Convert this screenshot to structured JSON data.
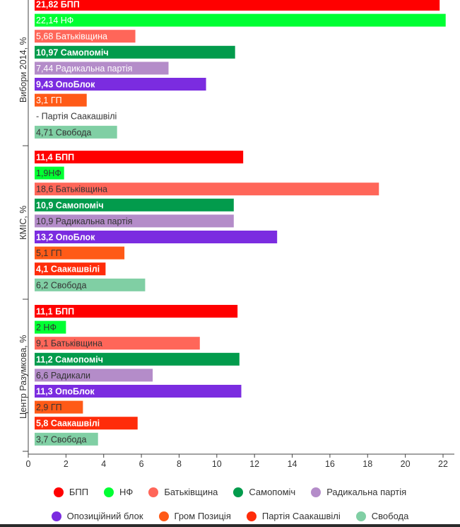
{
  "chart_data": {
    "type": "bar",
    "orientation": "horizontal",
    "x_ticks": [
      "0",
      "2",
      "4",
      "6",
      "8",
      "10",
      "12",
      "14",
      "16",
      "18",
      "20",
      "22"
    ],
    "xlim": [
      0,
      22.6
    ],
    "colors": {
      "bpp": "#ff0000",
      "nf": "#00ff33",
      "batk": "#ff6659",
      "samo": "#029b4c",
      "rad": "#b48cc9",
      "opo": "#7b2ce0",
      "grom": "#ff5a17",
      "saak": "#ff2c0a",
      "svob": "#80cfa4"
    },
    "groups": [
      {
        "label": "Вибори 2014, %",
        "bars": [
          {
            "key": "bpp",
            "value": 21.82,
            "label": "21,82 БПП",
            "bold": true,
            "text_color": "#ffffff"
          },
          {
            "key": "nf",
            "value": 22.14,
            "label": "22,14 НФ",
            "bold": false,
            "text_color": "#ffffff"
          },
          {
            "key": "batk",
            "value": 5.68,
            "label": "5,68 Батьківщина",
            "bold": false,
            "text_color": "#ffffff"
          },
          {
            "key": "samo",
            "value": 10.97,
            "label": "10,97 Самопоміч",
            "bold": true,
            "text_color": "#ffffff"
          },
          {
            "key": "rad",
            "value": 7.44,
            "label": "7,44 Радикальна партія",
            "bold": false,
            "text_color": "#ffffff"
          },
          {
            "key": "opo",
            "value": 9.43,
            "label": "9,43 ОпоБлок",
            "bold": true,
            "text_color": "#ffffff"
          },
          {
            "key": "grom",
            "value": 3.1,
            "label": "3,1 ГП",
            "bold": false,
            "text_color": "#ffffff"
          },
          {
            "key": "saak",
            "value": 0,
            "label": "- Партія Саакашвілі",
            "bold": false,
            "text_color": "#333333"
          },
          {
            "key": "svob",
            "value": 4.71,
            "label": "4,71 Свобода",
            "bold": false,
            "text_color": "#333333"
          }
        ]
      },
      {
        "label": "КМІС, %",
        "bars": [
          {
            "key": "bpp",
            "value": 11.4,
            "label": "11,4 БПП",
            "bold": true,
            "text_color": "#ffffff"
          },
          {
            "key": "nf",
            "value": 1.9,
            "label": "1,9НФ",
            "bold": false,
            "text_color": "#333333"
          },
          {
            "key": "batk",
            "value": 18.6,
            "label": "18,6 Батьківщина",
            "bold": false,
            "text_color": "#333333"
          },
          {
            "key": "samo",
            "value": 10.9,
            "label": "10,9 Самопоміч",
            "bold": true,
            "text_color": "#ffffff"
          },
          {
            "key": "rad",
            "value": 10.9,
            "label": "10,9 Радикальна партія",
            "bold": false,
            "text_color": "#333333"
          },
          {
            "key": "opo",
            "value": 13.2,
            "label": "13,2 ОпоБлок",
            "bold": true,
            "text_color": "#ffffff"
          },
          {
            "key": "grom",
            "value": 5.1,
            "label": "5,1 ГП",
            "bold": false,
            "text_color": "#333333"
          },
          {
            "key": "saak",
            "value": 4.1,
            "label": "4,1 Саакашвілі",
            "bold": true,
            "text_color": "#ffffff"
          },
          {
            "key": "svob",
            "value": 6.2,
            "label": "6,2 Свобода",
            "bold": false,
            "text_color": "#333333"
          }
        ]
      },
      {
        "label": "Центр Разумкова, %",
        "bars": [
          {
            "key": "bpp",
            "value": 11.1,
            "label": "11,1 БПП",
            "bold": true,
            "text_color": "#ffffff"
          },
          {
            "key": "nf",
            "value": 2,
            "label": "2 НФ",
            "bold": false,
            "text_color": "#333333"
          },
          {
            "key": "batk",
            "value": 9.1,
            "label": "9,1 Батьківщина",
            "bold": false,
            "text_color": "#333333"
          },
          {
            "key": "samo",
            "value": 11.2,
            "label": "11,2 Самопоміч",
            "bold": true,
            "text_color": "#ffffff"
          },
          {
            "key": "rad",
            "value": 6.6,
            "label": "6,6 Радикали",
            "bold": false,
            "text_color": "#333333"
          },
          {
            "key": "opo",
            "value": 11.3,
            "label": "11,3 ОпоБлок",
            "bold": true,
            "text_color": "#ffffff"
          },
          {
            "key": "grom",
            "value": 2.9,
            "label": "2,9 ГП",
            "bold": false,
            "text_color": "#333333"
          },
          {
            "key": "saak",
            "value": 5.8,
            "label": "5,8 Саакашвілі",
            "bold": true,
            "text_color": "#ffffff"
          },
          {
            "key": "svob",
            "value": 3.7,
            "label": "3,7 Свобода",
            "bold": false,
            "text_color": "#333333"
          }
        ]
      }
    ],
    "legend": [
      {
        "key": "bpp",
        "label": "БПП"
      },
      {
        "key": "nf",
        "label": "НФ"
      },
      {
        "key": "batk",
        "label": "Батьківщина"
      },
      {
        "key": "samo",
        "label": "Самопоміч"
      },
      {
        "key": "rad",
        "label": "Радикальна партія"
      },
      {
        "key": "opo",
        "label": "Опозиційний блок"
      },
      {
        "key": "grom",
        "label": "Гром Позиція"
      },
      {
        "key": "saak",
        "label": "Партія Саакашвілі"
      },
      {
        "key": "svob",
        "label": "Свобода"
      }
    ]
  }
}
